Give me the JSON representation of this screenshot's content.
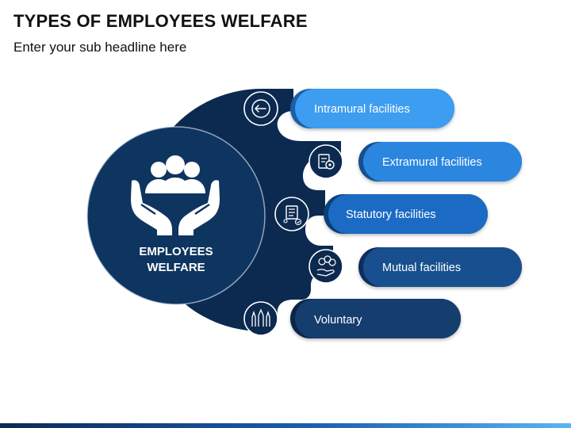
{
  "title": "TYPES OF EMPLOYEES WELFARE",
  "subtitle": "Enter your sub headline here",
  "center": {
    "line1": "EMPLOYEES",
    "line2": "WELFARE",
    "icon": "people-in-hands-icon"
  },
  "items": [
    {
      "label": "Intramural facilities",
      "icon": "arrow-left-icon",
      "color": "#3d9df0"
    },
    {
      "label": "Extramural facilities",
      "icon": "document-gear-icon",
      "color": "#2b86e0"
    },
    {
      "label": "Statutory facilities",
      "icon": "checklist-person-icon",
      "color": "#1b6bc4"
    },
    {
      "label": "Mutual facilities",
      "icon": "coins-hand-icon",
      "color": "#18508f"
    },
    {
      "label": "Voluntary",
      "icon": "raised-hands-icon",
      "color": "#153d6e"
    }
  ],
  "colors": {
    "navy": "#0c2a50",
    "accent": "#3d9df0"
  }
}
